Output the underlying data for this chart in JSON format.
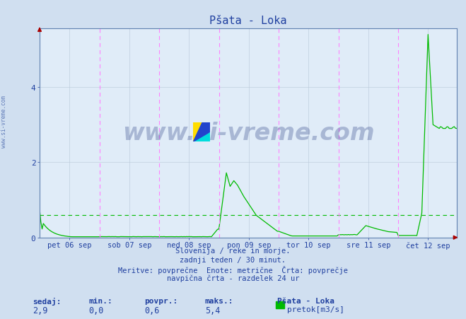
{
  "title": "Pšata - Loka",
  "bg_color": "#d0dff0",
  "plot_bg_color": "#e0ecf8",
  "line_color": "#00bb00",
  "grid_color": "#b8c8d8",
  "axis_color": "#6080b0",
  "text_color": "#2040a0",
  "dashed_vline_color": "#ff80ff",
  "dashed_hline_color": "#00bb00",
  "ylim": [
    0,
    5.569
  ],
  "yticks": [
    0,
    2,
    4
  ],
  "ylabel_values": [
    "0",
    "2",
    "4"
  ],
  "num_points": 336,
  "footer_lines": [
    "Slovenija / reke in morje.",
    "zadnji teden / 30 minut.",
    "Meritve: povprečne  Enote: metrične  Črta: povprečje",
    "navpična črta - razdelek 24 ur"
  ],
  "stats_labels": [
    "sedaj:",
    "min.:",
    "povpr.:",
    "maks.:"
  ],
  "stats_values": [
    "2,9",
    "0,0",
    "0,6",
    "5,4"
  ],
  "legend_label": "Pšata - Loka",
  "legend_unit": "pretok[m3/s]",
  "watermark": "www.si-vreme.com",
  "x_tick_labels": [
    "pet 06 sep",
    "sob 07 sep",
    "ned 08 sep",
    "pon 09 sep",
    "tor 10 sep",
    "sre 11 sep",
    "čet 12 sep"
  ],
  "avg_hline": 0.6,
  "watermark_color": "#1a2e7a",
  "watermark_alpha": 0.28
}
